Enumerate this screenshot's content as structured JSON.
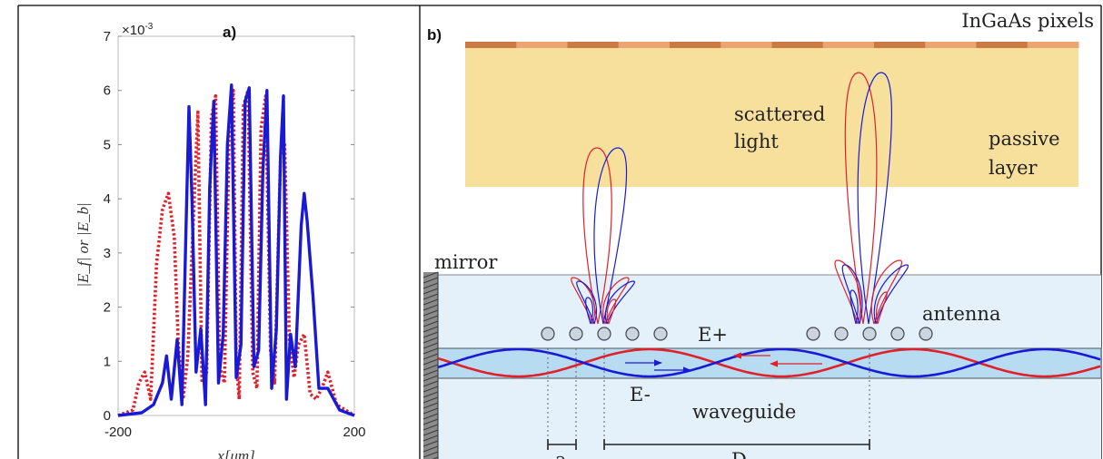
{
  "panel_a": {
    "label": "a)",
    "exponent": "×10",
    "exponent_power": "-3",
    "ylabel": "|E_f| or |E_b|",
    "xlabel": "x[μm]",
    "x_ticks": [
      "-200",
      "200"
    ],
    "y_ticks": [
      "0",
      "1",
      "2",
      "3",
      "4",
      "5",
      "6",
      "7"
    ],
    "colors": {
      "forward": "#1a1ad6",
      "backward": "#e0202a"
    }
  },
  "chart_data": {
    "type": "line",
    "title": "",
    "xlabel": "x[μm]",
    "ylabel": "|E_f| or |E_b|",
    "xlim": [
      -200,
      200
    ],
    "ylim": [
      0,
      7
    ],
    "y_multiplier": "×10^-3",
    "grid": false,
    "series": [
      {
        "style": "solid",
        "color": "#1a1ad6",
        "peaks_x": [
          -115,
          -80,
          -45,
          -15,
          15,
          45,
          80,
          115
        ],
        "x": [
          -200,
          -160,
          -140,
          -125,
          -118,
          -110,
          -100,
          -92,
          -85,
          -80,
          -75,
          -68,
          -60,
          -52,
          -45,
          -38,
          -30,
          -22,
          -15,
          -8,
          0,
          8,
          15,
          22,
          30,
          38,
          45,
          52,
          60,
          68,
          75,
          80,
          85,
          92,
          100,
          110,
          115,
          120,
          130,
          140,
          155,
          165,
          175,
          200
        ],
        "y": [
          0,
          0.05,
          0.2,
          0.6,
          1.1,
          0.3,
          1.4,
          0.2,
          3.5,
          5.7,
          4.0,
          0.8,
          1.6,
          0.2,
          4.2,
          5.8,
          0.6,
          1.5,
          5.0,
          6.1,
          0.7,
          1.3,
          5.8,
          6.05,
          0.9,
          1.2,
          4.5,
          6.0,
          0.5,
          1.6,
          4.8,
          5.9,
          0.3,
          1.5,
          0.9,
          3.5,
          4.1,
          3.6,
          2.2,
          0.5,
          0.5,
          0.3,
          0.1,
          0
        ]
      },
      {
        "style": "dotted",
        "color": "#e0202a",
        "peaks_x": [
          -115,
          -80,
          -45,
          -15,
          15,
          45,
          80,
          115
        ],
        "x": [
          -200,
          -175,
          -165,
          -155,
          -145,
          -135,
          -125,
          -115,
          -105,
          -98,
          -90,
          -82,
          -75,
          -65,
          -58,
          -50,
          -42,
          -35,
          -28,
          -20,
          -12,
          -5,
          0,
          5,
          12,
          20,
          28,
          35,
          42,
          50,
          58,
          65,
          75,
          82,
          90,
          98,
          105,
          115,
          125,
          135,
          145,
          155,
          170,
          200
        ],
        "y": [
          0,
          0.1,
          0.6,
          0.8,
          0.3,
          2.8,
          3.8,
          4.1,
          3.3,
          1.3,
          0.3,
          1.1,
          3.0,
          5.6,
          0.6,
          0.8,
          5.5,
          5.9,
          0.9,
          0.6,
          5.2,
          6.0,
          1.0,
          0.3,
          5.7,
          6.0,
          0.8,
          0.5,
          5.3,
          5.9,
          1.2,
          0.6,
          4.8,
          5.0,
          1.4,
          0.7,
          1.3,
          1.5,
          0.4,
          0.3,
          0.5,
          0.8,
          0.2,
          0
        ]
      }
    ]
  },
  "panel_b": {
    "label": "b)",
    "pixels_label": "InGaAs pixels",
    "scattered_line1": "scattered",
    "scattered_line2": "light",
    "passive_line1": "passive",
    "passive_line2": "layer",
    "mirror_label": "mirror",
    "antenna_label": "antenna",
    "eplus_label": "E+",
    "eminus_label": "E-",
    "waveguide_label": "waveguide",
    "a_label": "a",
    "d_label": "D",
    "colors": {
      "passive_layer": "#f7df9c",
      "pixel_dark": "#c97a45",
      "pixel_light": "#eaa572",
      "cladding": "#e4f1fa",
      "waveguide_core": "#b7dcf1",
      "red_wave": "#e0202a",
      "blue_wave": "#1a1ad6",
      "antenna_fill": "#c9d6de"
    }
  }
}
